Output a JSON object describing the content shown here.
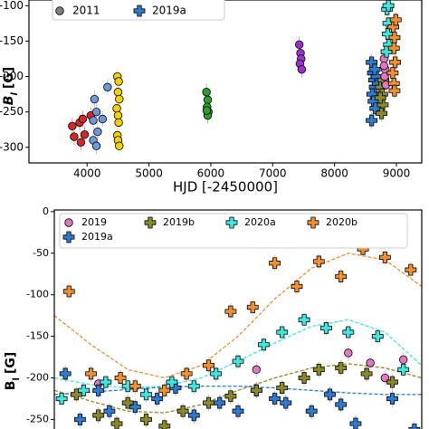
{
  "chart_data": [
    {
      "type": "scatter",
      "ylabel": {
        "main": "B",
        "sub": "l",
        "unit": "[G]"
      },
      "xlabel": "HJD  [-2450000]",
      "xlim": [
        3060,
        9410
      ],
      "xticks": [
        4000,
        5000,
        6000,
        7000,
        8000,
        9000
      ],
      "ylim": [
        -322,
        -92
      ],
      "yticks": [
        -300,
        -250,
        -200,
        -150,
        -100
      ],
      "legend": [
        {
          "label": "2011",
          "color": "#808080",
          "marker": "circle"
        },
        {
          "label": "2019a",
          "color": "#2e7bcf",
          "marker": "plus"
        }
      ],
      "series": [
        {
          "color": "#d62728",
          "marker": "circle",
          "x": [
            3760,
            3790,
            3880,
            3900,
            3930,
            3960,
            4060
          ],
          "values": [
            -270,
            -285,
            -265,
            -293,
            -260,
            -282,
            -255
          ]
        },
        {
          "color": "#6f98d8",
          "marker": "circle",
          "x": [
            4100,
            4120,
            4150,
            4170,
            4250,
            4330,
            4100,
            4150
          ],
          "values": [
            -262,
            -232,
            -250,
            -278,
            -260,
            -215,
            -290,
            -298
          ]
        },
        {
          "color": "#f5d000",
          "marker": "circle",
          "x": [
            4490,
            4510,
            4500,
            4520,
            4480,
            4500,
            4510,
            4490,
            4500,
            4520
          ],
          "values": [
            -200,
            -207,
            -222,
            -232,
            -245,
            -255,
            -265,
            -283,
            -290,
            -298
          ]
        },
        {
          "color": "#2ca02c",
          "marker": "circle",
          "x": [
            5930,
            5950,
            5940,
            5960,
            5950,
            5935
          ],
          "values": [
            -222,
            -233,
            -243,
            -250,
            -255,
            -248
          ]
        },
        {
          "color": "#9b30c8",
          "marker": "circle",
          "x": [
            7430,
            7450,
            7460,
            7440,
            7470
          ],
          "values": [
            -155,
            -167,
            -175,
            -182,
            -190
          ]
        },
        {
          "color": "#2e7bcf",
          "marker": "plus",
          "x": [
            8600,
            8620,
            8640,
            8650,
            8610,
            8630,
            8660,
            8680,
            8600,
            8650,
            8700
          ],
          "values": [
            -180,
            -195,
            -205,
            -215,
            -225,
            -235,
            -245,
            -200,
            -262,
            -190,
            -210
          ]
        },
        {
          "color": "#8a8a2a",
          "marker": "plus",
          "x": [
            8750,
            8770,
            8780,
            8760,
            8790,
            8740
          ],
          "values": [
            -215,
            -225,
            -240,
            -252,
            -205,
            -230
          ]
        },
        {
          "color": "#e377c2",
          "marker": "circle",
          "x": [
            8800,
            8820,
            8810,
            8830,
            8800
          ],
          "values": [
            -175,
            -190,
            -200,
            -212,
            -185
          ]
        },
        {
          "color": "#3ee8e0",
          "marker": "plus",
          "x": [
            8850,
            8870,
            8860,
            8880,
            8840,
            8870
          ],
          "values": [
            -105,
            -125,
            -140,
            -155,
            -165,
            -100
          ]
        },
        {
          "color": "#f09030",
          "marker": "plus",
          "x": [
            8950,
            8970,
            8960,
            8980,
            8940,
            8960,
            8970,
            8990
          ],
          "values": [
            -130,
            -145,
            -160,
            -180,
            -195,
            -210,
            -220,
            -120
          ]
        }
      ]
    },
    {
      "type": "scatter",
      "ylabel": {
        "main": "B",
        "sub": "l",
        "unit": "[G]"
      },
      "xlim": [
        0,
        1
      ],
      "ylim": [
        -268,
        2
      ],
      "yticks": [
        0,
        -50,
        -100,
        -150,
        -200,
        -250
      ],
      "legend": [
        {
          "label": "2019",
          "color": "#e377c2",
          "marker": "circle"
        },
        {
          "label": "2019b",
          "color": "#8a8a2a",
          "marker": "plus"
        },
        {
          "label": "2020a",
          "color": "#3ee8e0",
          "marker": "plus"
        },
        {
          "label": "2020b",
          "color": "#f09030",
          "marker": "plus"
        },
        {
          "label": "2019a",
          "color": "#2e7bcf",
          "marker": "plus"
        }
      ],
      "series": [
        {
          "color": "#e377c2",
          "marker": "circle",
          "x": [
            0.12,
            0.55,
            0.8,
            0.86,
            0.95,
            0.9
          ],
          "values": [
            -207,
            -190,
            -170,
            -182,
            -178,
            -200
          ]
        },
        {
          "color": "#2e7bcf",
          "marker": "plus",
          "x": [
            0.03,
            0.07,
            0.12,
            0.15,
            0.22,
            0.28,
            0.33,
            0.38,
            0.45,
            0.5,
            0.55,
            0.6,
            0.63,
            0.7,
            0.75,
            0.78,
            0.82,
            0.92,
            0.98
          ],
          "values": [
            -195,
            -250,
            -215,
            -240,
            -235,
            -225,
            -212,
            -245,
            -230,
            -240,
            -215,
            -225,
            -230,
            -240,
            -220,
            -232,
            -255,
            -225,
            -262
          ]
        },
        {
          "color": "#8a8a2a",
          "marker": "plus",
          "x": [
            0.06,
            0.12,
            0.17,
            0.2,
            0.25,
            0.3,
            0.35,
            0.42,
            0.48,
            0.55,
            0.62,
            0.68,
            0.72,
            0.78,
            0.85,
            0.92
          ],
          "values": [
            -220,
            -245,
            -255,
            -230,
            -250,
            -258,
            -240,
            -230,
            -222,
            -215,
            -212,
            -200,
            -190,
            -188,
            -195,
            -205
          ]
        },
        {
          "color": "#3ee8e0",
          "marker": "plus",
          "x": [
            0.02,
            0.08,
            0.14,
            0.2,
            0.25,
            0.32,
            0.38,
            0.44,
            0.5,
            0.57,
            0.62,
            0.68,
            0.74,
            0.8,
            0.88,
            0.95
          ],
          "values": [
            -225,
            -215,
            -205,
            -210,
            -220,
            -205,
            -210,
            -195,
            -180,
            -160,
            -145,
            -130,
            -140,
            -145,
            -150,
            -190
          ]
        },
        {
          "color": "#f09030",
          "marker": "plus",
          "x": [
            0.04,
            0.1,
            0.18,
            0.22,
            0.3,
            0.36,
            0.42,
            0.48,
            0.54,
            0.6,
            0.66,
            0.72,
            0.78,
            0.84,
            0.9,
            0.97
          ],
          "values": [
            -96,
            -195,
            -200,
            -210,
            -215,
            -195,
            -185,
            -120,
            -115,
            -62,
            -90,
            -60,
            -78,
            -45,
            -55,
            -70
          ]
        }
      ],
      "fits": [
        {
          "color": "#f09030",
          "x": [
            0,
            0.1,
            0.2,
            0.3,
            0.4,
            0.5,
            0.6,
            0.7,
            0.8,
            0.9,
            1
          ],
          "values": [
            -125,
            -160,
            -190,
            -200,
            -185,
            -150,
            -105,
            -68,
            -50,
            -58,
            -90
          ]
        },
        {
          "color": "#3ee8e0",
          "x": [
            0,
            0.1,
            0.2,
            0.3,
            0.4,
            0.5,
            0.6,
            0.7,
            0.8,
            0.9,
            1
          ],
          "values": [
            -200,
            -208,
            -212,
            -210,
            -200,
            -180,
            -158,
            -138,
            -130,
            -145,
            -185
          ]
        },
        {
          "color": "#8a8a2a",
          "x": [
            0,
            0.1,
            0.2,
            0.3,
            0.4,
            0.5,
            0.6,
            0.7,
            0.8,
            0.9,
            1
          ],
          "values": [
            -215,
            -228,
            -240,
            -242,
            -232,
            -215,
            -200,
            -188,
            -183,
            -188,
            -200
          ]
        },
        {
          "color": "#2e7bcf",
          "x": [
            0,
            0.1,
            0.2,
            0.3,
            0.4,
            0.5,
            0.6,
            0.7,
            0.8,
            0.9,
            1
          ],
          "values": [
            -220,
            -217,
            -214,
            -211,
            -210,
            -210,
            -212,
            -215,
            -218,
            -220,
            -220
          ]
        }
      ]
    }
  ]
}
